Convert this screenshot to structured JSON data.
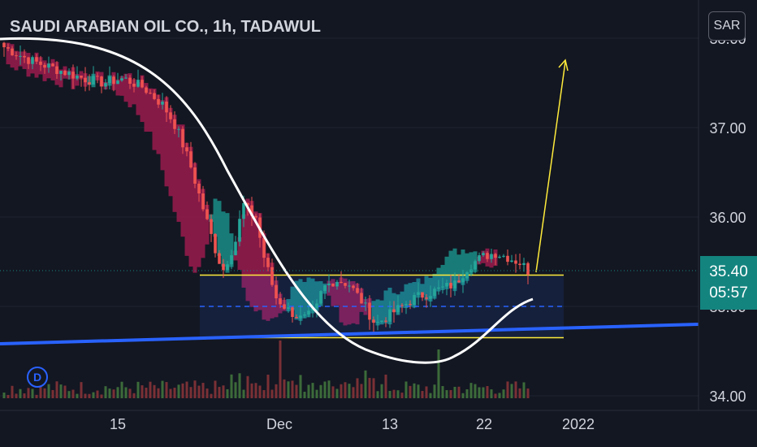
{
  "header": {
    "title": "SAUDI ARABIAN OIL CO., 1h, TADAWUL",
    "currency_button": "SAR"
  },
  "badge": {
    "dividend": "D"
  },
  "last_price": {
    "value": "35.40",
    "countdown": "05:57"
  },
  "colors": {
    "background": "#131722",
    "up": "#26a69a",
    "down": "#ef5350",
    "cloud_bear": "#9b1b4e",
    "cloud_bull": "#1b8d86",
    "trendline": "#2962ff",
    "box_edge": "#ffeb3b",
    "arrow": "#ffeb3b",
    "curve": "#ffffff",
    "volume_up": "#3c6b3a",
    "volume_down": "#7a3035"
  },
  "chart_data": {
    "type": "candlestick",
    "symbol": "SAUDI ARABIAN OIL CO.",
    "interval": "1h",
    "exchange": "TADAWUL",
    "x_ticks": [
      "15",
      "Dec",
      "13",
      "22",
      "2022"
    ],
    "y_ticks": [
      34.0,
      35.0,
      36.0,
      37.0,
      38.0
    ],
    "ylim": [
      34.0,
      38.0
    ],
    "last_price": 35.4,
    "close_path": [
      [
        0,
        37.9
      ],
      [
        4,
        37.75
      ],
      [
        8,
        37.65
      ],
      [
        12,
        37.55
      ],
      [
        15,
        37.5
      ],
      [
        18,
        37.55
      ],
      [
        21,
        37.45
      ],
      [
        24,
        37.25
      ],
      [
        26,
        37.0
      ],
      [
        28,
        36.6
      ],
      [
        30,
        36.1
      ],
      [
        32,
        35.6
      ],
      [
        33,
        35.4
      ],
      [
        35,
        35.75
      ],
      [
        36,
        36.15
      ],
      [
        37,
        36.05
      ],
      [
        38,
        36.0
      ],
      [
        39,
        35.6
      ],
      [
        41,
        35.1
      ],
      [
        43,
        34.95
      ],
      [
        45,
        34.85
      ],
      [
        47,
        34.95
      ],
      [
        48,
        35.2
      ],
      [
        50,
        35.3
      ],
      [
        52,
        35.25
      ],
      [
        54,
        35.05
      ],
      [
        56,
        34.8
      ],
      [
        58,
        34.9
      ],
      [
        60,
        35.0
      ],
      [
        62,
        35.1
      ],
      [
        64,
        35.15
      ],
      [
        66,
        35.2
      ],
      [
        68,
        35.25
      ],
      [
        70,
        35.45
      ],
      [
        72,
        35.55
      ],
      [
        74,
        35.6
      ],
      [
        76,
        35.55
      ],
      [
        78,
        35.48
      ],
      [
        79,
        35.4
      ]
    ],
    "range_box": {
      "top": 35.35,
      "mid": 35.0,
      "bottom": 34.65
    }
  }
}
